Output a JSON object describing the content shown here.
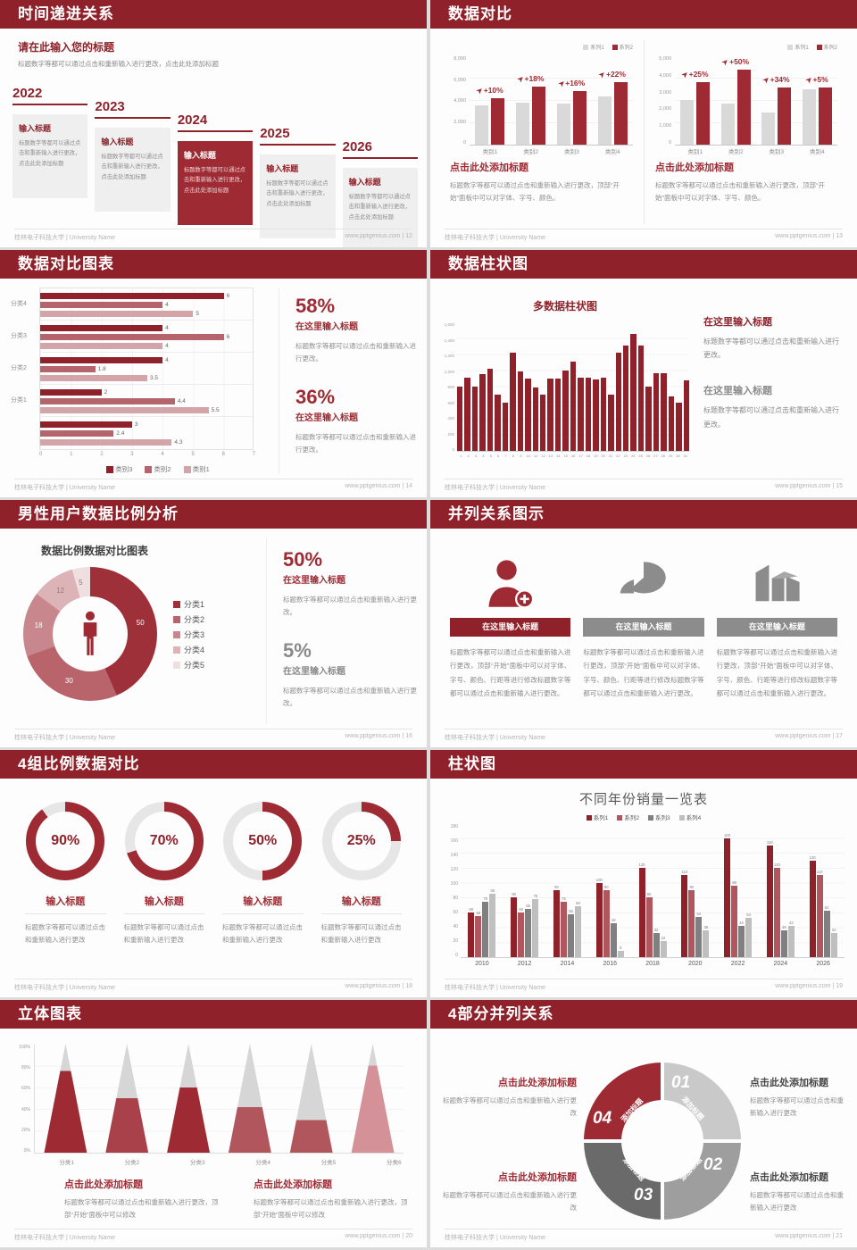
{
  "footer": {
    "university": "桂林电子科技大学 | University Name",
    "site": "www.pptgenius.com"
  },
  "colors": {
    "header_red": "#8e2129",
    "accent_red": "#9e2b33",
    "mid_red": "#b0565e",
    "light_pink": "#d3a4a8",
    "gray_bar": "#d9d9d9",
    "gray_dark": "#808080",
    "gray_light": "#bfbfbf"
  },
  "slides": {
    "s1": {
      "title": "时间递进关系",
      "page": "12",
      "intro_heading": "请在此输入您的标题",
      "intro_body": "标题数字等都可以通过点击和重新输入进行更改，点击此处添加标题",
      "box_title": "输入标题",
      "box_body": "标题数字等都可以通过点击和重新输入进行更改，点击此处添加标题",
      "years": [
        "2022",
        "2023",
        "2024",
        "2025",
        "2026"
      ],
      "highlight_year": "2024"
    },
    "s2": {
      "title": "数据对比",
      "page": "13",
      "heading": "点击此处添加标题",
      "body": "标题数字等都可以通过点击和重新输入进行更改，顶部“开始”面板中可以对字体、字号、颜色。"
    },
    "s3": {
      "title": "数据对比图表",
      "page": "14",
      "stats": [
        {
          "pct": "58%",
          "heading": "在这里输入标题",
          "body": "标题数字等都可以通过点击和重新输入进行更改。"
        },
        {
          "pct": "36%",
          "heading": "在这里输入标题",
          "body": "标题数字等都可以通过点击和重新输入进行更改。"
        }
      ]
    },
    "s4": {
      "title": "数据柱状图",
      "page": "15",
      "blocks": [
        {
          "heading": "在这里输入标题",
          "body": "标题数字等都可以通过点击和重新输入进行更改。"
        },
        {
          "heading": "在这里输入标题",
          "body": "标题数字等都可以通过点击和重新输入进行更改。"
        }
      ]
    },
    "s5": {
      "title": "男性用户数据比例分析",
      "page": "16",
      "chart_title": "数据比例数据对比图表",
      "stats": [
        {
          "pct": "50%",
          "heading": "在这里输入标题",
          "body": "标题数字等都可以通过点击和重新输入进行更改。"
        },
        {
          "pct": "5%",
          "heading": "在这里输入标题",
          "body": "标题数字等都可以通过点击和重新输入进行更改。"
        }
      ]
    },
    "s6": {
      "title": "并列关系图示",
      "page": "17",
      "col_heading": "在这里输入标题",
      "col_body": "标题数字等都可以通过点击和重新输入进行更改，顶部“开始”面板中可以对字体、字号、颜色、行距等进行修改标题数字等都可以通过点击和重新输入进行更改。",
      "icons": [
        "woman-add-icon",
        "pie-chart-icon",
        "building-icon"
      ]
    },
    "s7": {
      "title": "4组比例数据对比",
      "page": "18",
      "item_title": "输入标题",
      "item_body": "标题数字等都可以通过点击和重新输入进行更改"
    },
    "s8": {
      "title": "柱状图",
      "page": "19"
    },
    "s9": {
      "title": "立体图表",
      "page": "20",
      "heading": "点击此处添加标题",
      "body": "标题数字等都可以通过点击和重新输入进行更改，顶部“开始”面板中可以修改"
    },
    "s10": {
      "title": "4部分并列关系",
      "page": "21",
      "heading": "点击此处添加标题",
      "body": "标题数字等都可以通过点击和重新输入进行更改",
      "segment_label": "添加标题",
      "numbers": [
        "01",
        "02",
        "03",
        "04"
      ]
    }
  },
  "chart_data": [
    {
      "id": "growth-compare-left",
      "type": "bar",
      "categories": [
        "类别1",
        "类别2",
        "类别3",
        "类别4"
      ],
      "series": [
        {
          "name": "系列1",
          "color": "#d9d9d9",
          "values": [
            3500,
            3800,
            3700,
            4300
          ]
        },
        {
          "name": "系列2",
          "color": "#9e2b33",
          "values": [
            4200,
            5200,
            4800,
            5600
          ]
        }
      ],
      "annotations": [
        "+10%",
        "+18%",
        "+16%",
        "+22%"
      ],
      "ylim": [
        0,
        8000
      ],
      "yticks": [
        "8,000",
        "6,000",
        "4,000",
        "2,000",
        "0"
      ],
      "legend_position": "top-right"
    },
    {
      "id": "growth-compare-right",
      "type": "bar",
      "categories": [
        "类别1",
        "类别2",
        "类别3",
        "类别4"
      ],
      "series": [
        {
          "name": "系列1",
          "color": "#d9d9d9",
          "values": [
            2500,
            2300,
            1800,
            3100
          ]
        },
        {
          "name": "系列2",
          "color": "#9e2b33",
          "values": [
            3500,
            4200,
            3200,
            3200
          ]
        }
      ],
      "annotations": [
        "+25%",
        "+50%",
        "+34%",
        "+5%"
      ],
      "ylim": [
        0,
        5000
      ],
      "yticks": [
        "5,000",
        "4,000",
        "3,000",
        "2,000",
        "1,000",
        "0"
      ],
      "legend_position": "top-right"
    },
    {
      "id": "category-hbar",
      "type": "bar-horizontal",
      "groups": [
        "分类4",
        "分类3",
        "分类2",
        "分类1",
        ""
      ],
      "series": [
        {
          "name": "类别3",
          "color": "#8e2129",
          "values": [
            6,
            4,
            4,
            2,
            3
          ]
        },
        {
          "name": "类别2",
          "color": "#b5646b",
          "values": [
            4,
            6,
            1.8,
            4.4,
            2.4
          ]
        },
        {
          "name": "类别1",
          "color": "#d3a4a8",
          "values": [
            5,
            4,
            3.5,
            5.5,
            4.3
          ]
        }
      ],
      "xlim": [
        0,
        7
      ],
      "xticks": [
        "0",
        "1",
        "2",
        "3",
        "4",
        "5",
        "6",
        "7"
      ],
      "legend_position": "bottom"
    },
    {
      "id": "multi-column",
      "type": "bar",
      "title": "多数据柱状图",
      "color": "#8e2129",
      "x": [
        "1",
        "2",
        "3",
        "4",
        "5",
        "6",
        "7",
        "8",
        "9",
        "10",
        "11",
        "12",
        "13",
        "14",
        "15",
        "16",
        "17",
        "18",
        "19",
        "20",
        "21",
        "22",
        "23",
        "24",
        "25",
        "26",
        "27",
        "28",
        "29",
        "30",
        "31"
      ],
      "values": [
        800,
        900,
        800,
        950,
        1020,
        700,
        600,
        1210,
        980,
        890,
        780,
        700,
        890,
        890,
        990,
        1100,
        900,
        900,
        880,
        900,
        700,
        1210,
        1300,
        1450,
        1300,
        800,
        960,
        960,
        670,
        600,
        870
      ],
      "ylim": [
        0,
        1600
      ],
      "yticks": [
        "1,600",
        "1,400",
        "1,200",
        "1,000",
        "800",
        "600",
        "400",
        "200",
        "0"
      ]
    },
    {
      "id": "male-user-donut",
      "type": "pie",
      "title": "数据比例数据对比图表",
      "labels": [
        "分类1",
        "分类2",
        "分类3",
        "分类4",
        "分类5"
      ],
      "values": [
        50,
        30,
        18,
        12,
        5
      ],
      "colors": [
        "#9e3039",
        "#b9646b",
        "#c8878c",
        "#dcb3b6",
        "#efdfe0"
      ]
    },
    {
      "id": "ratio-rings",
      "type": "pie",
      "values": [
        90,
        70,
        50,
        25
      ],
      "labels": [
        "90%",
        "70%",
        "50%",
        "25%"
      ],
      "color": "#9e2b33",
      "track": "#e6e6e6"
    },
    {
      "id": "yearly-sales",
      "type": "bar",
      "title": "不同年份销量一览表",
      "categories": [
        "2010",
        "2012",
        "2014",
        "2016",
        "2018",
        "2020",
        "2022",
        "2024",
        "2026"
      ],
      "series": [
        {
          "name": "系列1",
          "color": "#8e2129",
          "values": [
            60,
            80,
            90,
            100,
            120,
            110,
            160,
            150,
            130
          ]
        },
        {
          "name": "系列2",
          "color": "#b0565e",
          "values": [
            55,
            60,
            75,
            90,
            80,
            90,
            96,
            120,
            110
          ]
        },
        {
          "name": "系列3",
          "color": "#808080",
          "values": [
            75,
            65,
            58,
            46,
            32,
            54,
            42,
            36,
            62
          ]
        },
        {
          "name": "系列4",
          "color": "#bfbfbf",
          "values": [
            85,
            78,
            68,
            8,
            22,
            36,
            53,
            42,
            32
          ]
        }
      ],
      "ylim": [
        0,
        180
      ],
      "yticks": [
        "180",
        "160",
        "140",
        "120",
        "100",
        "80",
        "60",
        "40",
        "20",
        "0"
      ],
      "legend_position": "top"
    },
    {
      "id": "cone-chart",
      "type": "cone",
      "categories": [
        "分类1",
        "分类2",
        "分类3",
        "分类4",
        "分类5",
        "分类6"
      ],
      "values": [
        75,
        50,
        60,
        42,
        30,
        80
      ],
      "colors": [
        "#9e2b33",
        "#a8414a",
        "#9e2b33",
        "#b2565e",
        "#b2565e",
        "#d49298"
      ],
      "top_color": "#d6d6d6",
      "yticks": [
        "100%",
        "80%",
        "60%",
        "40%",
        "20%",
        "0%"
      ]
    }
  ]
}
